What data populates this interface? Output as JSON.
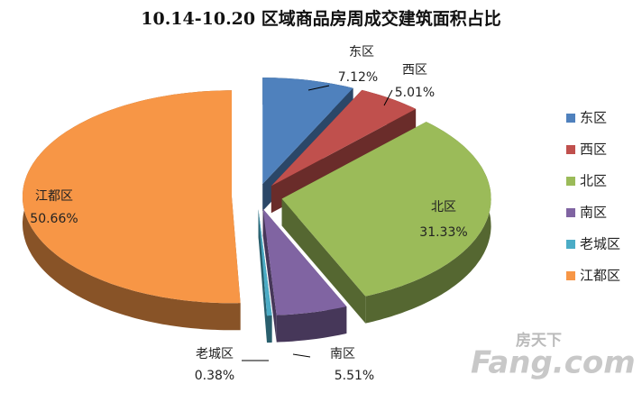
{
  "chart_data": {
    "type": "pie",
    "title": "10.14-10.20 区域商品房周成交建筑面积占比",
    "categories": [
      "东区",
      "西区",
      "北区",
      "南区",
      "老城区",
      "江都区"
    ],
    "values": [
      7.12,
      5.01,
      31.33,
      5.51,
      0.38,
      50.66
    ],
    "value_labels": [
      "7.12%",
      "5.01%",
      "31.33%",
      "5.51%",
      "0.38%",
      "50.66%"
    ],
    "colors": [
      "#4f81bd",
      "#c0504d",
      "#9bbb59",
      "#8064a2",
      "#4bacc6",
      "#f79646"
    ],
    "legend": "right"
  },
  "watermark": [
    "房天下",
    "Fang.com"
  ]
}
